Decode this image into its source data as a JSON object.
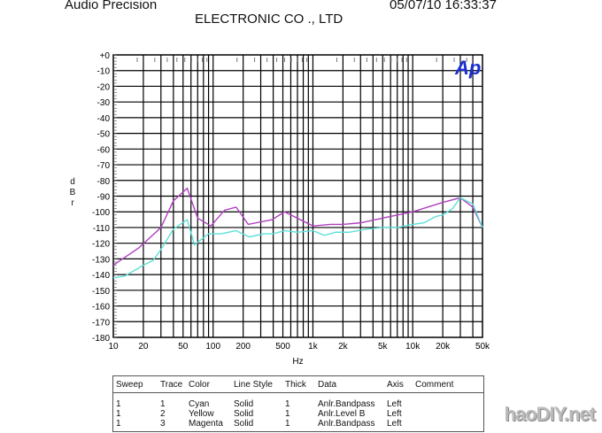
{
  "header": {
    "left": "Audio Precision",
    "date": "05/07/10 16:33:37",
    "company": "ELECTRONIC  CO .,  LTD"
  },
  "logo": "Ap",
  "watermark": "haoDIY.net",
  "colors": {
    "cyan": "#5ee0d8",
    "magenta": "#b040c0",
    "grid": "#000000",
    "logo": "#1a2fd0"
  },
  "chart_data": {
    "type": "line",
    "xlabel": "Hz",
    "ylabel": "dBr",
    "xscale": "log",
    "xlim": [
      10,
      50000
    ],
    "ylim": [
      -180,
      0
    ],
    "grid": true,
    "xticks": [
      {
        "v": 10,
        "l": "10"
      },
      {
        "v": 20,
        "l": "20"
      },
      {
        "v": 50,
        "l": "50"
      },
      {
        "v": 100,
        "l": "100"
      },
      {
        "v": 200,
        "l": "200"
      },
      {
        "v": 500,
        "l": "500"
      },
      {
        "v": 1000,
        "l": "1k"
      },
      {
        "v": 2000,
        "l": "2k"
      },
      {
        "v": 5000,
        "l": "5k"
      },
      {
        "v": 10000,
        "l": "10k"
      },
      {
        "v": 20000,
        "l": "20k"
      },
      {
        "v": 50000,
        "l": "50k"
      }
    ],
    "yticks": [
      "+0",
      "-10",
      "-20",
      "-30",
      "-40",
      "-50",
      "-60",
      "-70",
      "-80",
      "-90",
      "-100",
      "-110",
      "-120",
      "-130",
      "-140",
      "-150",
      "-160",
      "-170",
      "-180"
    ],
    "series": [
      {
        "color": "#b040c0",
        "x": [
          10,
          18,
          30,
          40,
          55,
          70,
          95,
          130,
          170,
          225,
          390,
          520,
          1000,
          1500,
          2000,
          3000,
          5000,
          10000,
          20000,
          30000,
          40000,
          50000
        ],
        "y": [
          -134,
          -123,
          -110,
          -93,
          -85,
          -104,
          -109,
          -99,
          -97,
          -108,
          -105,
          -100,
          -109,
          -108,
          -108,
          -107,
          -104,
          -100,
          -94,
          -91,
          -97,
          -110
        ]
      },
      {
        "color": "#5ee0d8",
        "x": [
          10,
          13,
          20,
          25,
          30,
          40,
          55,
          65,
          90,
          120,
          170,
          230,
          320,
          400,
          520,
          700,
          1000,
          1300,
          1700,
          2300,
          3500,
          5000,
          7000,
          10000,
          13000,
          17000,
          20000,
          25000,
          30000,
          40000,
          50000
        ],
        "y": [
          -142,
          -141,
          -134,
          -131,
          -124,
          -111,
          -105,
          -121,
          -114,
          -114,
          -112,
          -116,
          -114,
          -114,
          -112,
          -113,
          -112,
          -115,
          -113,
          -113,
          -111,
          -110,
          -110,
          -108,
          -107,
          -103,
          -102,
          -98,
          -91,
          -95,
          -110
        ]
      }
    ]
  },
  "legend": {
    "headers": [
      "Sweep",
      "Trace",
      "Color",
      "Line Style",
      "Thick",
      "Data",
      "Axis",
      "Comment"
    ],
    "rows": [
      [
        "1",
        "1",
        "Cyan",
        "Solid",
        "1",
        "Anlr.Bandpass",
        "Left",
        ""
      ],
      [
        "1",
        "2",
        "Yellow",
        "Solid",
        "1",
        "Anlr.Level B",
        "Left",
        ""
      ],
      [
        "1",
        "3",
        "Magenta",
        "Solid",
        "1",
        "Anlr.Bandpass",
        "Left",
        ""
      ]
    ]
  }
}
